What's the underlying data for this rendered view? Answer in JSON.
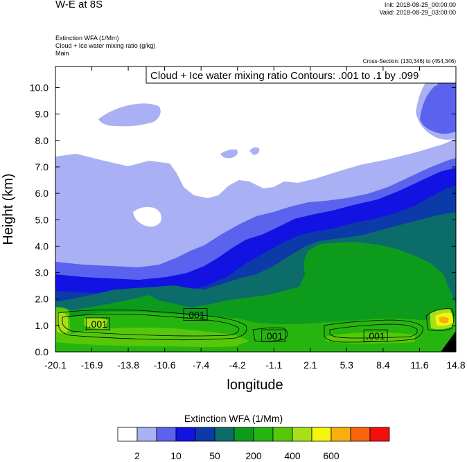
{
  "header": {
    "title": "W-E at 8S",
    "init": "Init: 2018-08-25_00:00:00",
    "valid": "Valid: 2018-08-29_03:00:00",
    "subtitle_lines": [
      "Extinction WFA   (1/Mm)",
      "Cloud + Ice water mixing ratio   (g/kg)",
      "Main"
    ],
    "cross_section": "Cross-Section: (130,346) to (454,346)",
    "contour_info": "Cloud + Ice water mixing ratio Contours: .001 to .1 by .099"
  },
  "chart_data": {
    "type": "heatmap",
    "title": "W-E at 8S",
    "xlabel": "longitude",
    "ylabel": "Height (km)",
    "x_ticks": [
      "-20.1",
      "-16.9",
      "-13.8",
      "-10.6",
      "-7.4",
      "-4.2",
      "-1.1",
      "2.1",
      "5.3",
      "8.4",
      "11.6",
      "14.8"
    ],
    "x_range": [
      -20.1,
      14.8
    ],
    "y_ticks": [
      "0.0",
      "1.0",
      "2.0",
      "3.0",
      "4.0",
      "5.0",
      "6.0",
      "7.0",
      "8.0",
      "9.0",
      "10.0"
    ],
    "y_range": [
      0,
      10.8
    ],
    "contour_labels": [
      {
        "text": ".001",
        "x": -16.4,
        "y": 1.05
      },
      {
        "text": ".001",
        "x": -7.9,
        "y": 1.4
      },
      {
        "text": ".001",
        "x": -1.1,
        "y": 0.6
      },
      {
        "text": ".001",
        "x": 7.8,
        "y": 0.6
      }
    ],
    "colorbar": {
      "title": "Extinction WFA  (1/Mm)",
      "colors": [
        "#ffffff",
        "#a9b0f3",
        "#5a62ee",
        "#1212e2",
        "#0c3aa8",
        "#0b6c6a",
        "#0d9b1c",
        "#26b50f",
        "#57c70a",
        "#a7e016",
        "#f3f50c",
        "#f6af0d",
        "#f7650c",
        "#f50e0e"
      ],
      "labels": [
        {
          "text": "2",
          "after_box": 1
        },
        {
          "text": "10",
          "after_box": 3
        },
        {
          "text": "50",
          "after_box": 5
        },
        {
          "text": "200",
          "after_box": 7
        },
        {
          "text": "400",
          "after_box": 9
        },
        {
          "text": "600",
          "after_box": 11
        }
      ]
    }
  }
}
